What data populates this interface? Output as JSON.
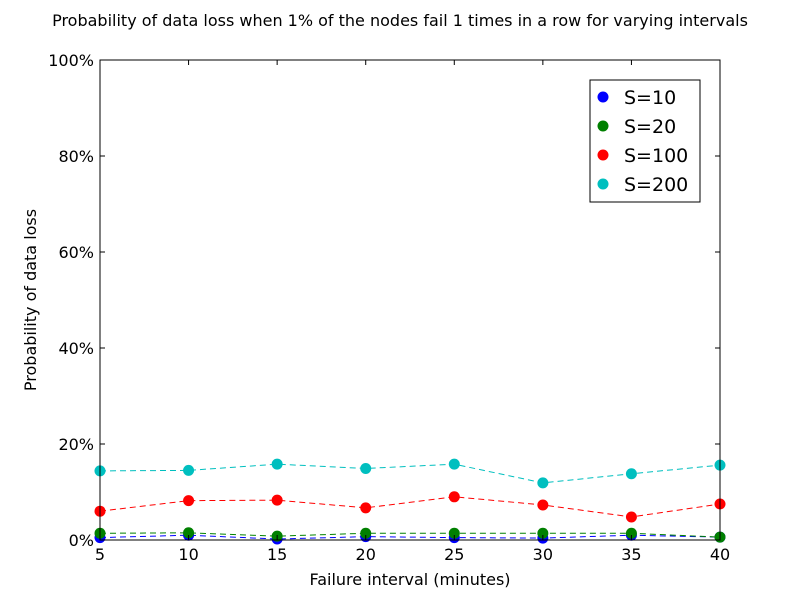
{
  "chart_data": {
    "type": "line",
    "title": "Probability of data loss when 1% of the nodes fail 1 times in a row for varying intervals",
    "xlabel": "Failure interval (minutes)",
    "ylabel": "Probability of data loss",
    "x": [
      5,
      10,
      15,
      20,
      25,
      30,
      35,
      40
    ],
    "x_ticks": [
      "5",
      "10",
      "15",
      "20",
      "25",
      "30",
      "35",
      "40"
    ],
    "y_ticks": [
      "0%",
      "20%",
      "40%",
      "60%",
      "80%",
      "100%"
    ],
    "xlim": [
      5,
      40
    ],
    "ylim": [
      0,
      100
    ],
    "y_unit": "percent",
    "grid": false,
    "legend_position": "top-right",
    "line_style": "dashed",
    "series": [
      {
        "name": "S=10",
        "color": "#0000ff",
        "values": [
          0.5,
          1.0,
          0.2,
          0.7,
          0.5,
          0.4,
          1.0,
          0.6
        ]
      },
      {
        "name": "S=20",
        "color": "#008000",
        "values": [
          1.4,
          1.5,
          0.8,
          1.4,
          1.4,
          1.4,
          1.4,
          0.6
        ]
      },
      {
        "name": "S=100",
        "color": "#ff0000",
        "values": [
          6.0,
          8.2,
          8.3,
          6.7,
          9.0,
          7.3,
          4.8,
          7.5
        ]
      },
      {
        "name": "S=200",
        "color": "#00bfbf",
        "values": [
          14.4,
          14.5,
          15.8,
          14.9,
          15.8,
          11.9,
          13.8,
          15.6
        ]
      }
    ]
  }
}
